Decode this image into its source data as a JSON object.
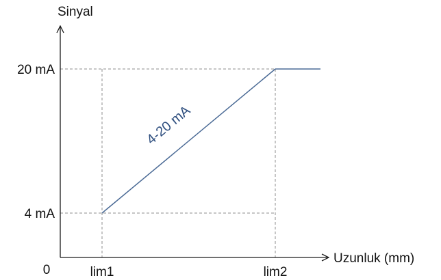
{
  "chart_data": {
    "type": "line",
    "title": "",
    "xlabel": "Uzunluk (mm)",
    "ylabel": "Sinyal",
    "origin_label": "0",
    "x_ticks": [
      "lim1",
      "lim2"
    ],
    "y_ticks": [
      "4 mA",
      "20 mA"
    ],
    "y_values": [
      4,
      20
    ],
    "series": [
      {
        "name": "4-20 mA",
        "points": [
          {
            "x": "lim1",
            "y": 4
          },
          {
            "x": "lim2",
            "y": 20
          },
          {
            "x": "beyond lim2",
            "y": 20
          }
        ]
      }
    ],
    "guides": "dashed",
    "grid": false,
    "colors": {
      "series": "#4a6a95",
      "series_label": "#2f4f7f",
      "axis": "#1a1a1a",
      "guide": "#8c8c8c"
    }
  }
}
